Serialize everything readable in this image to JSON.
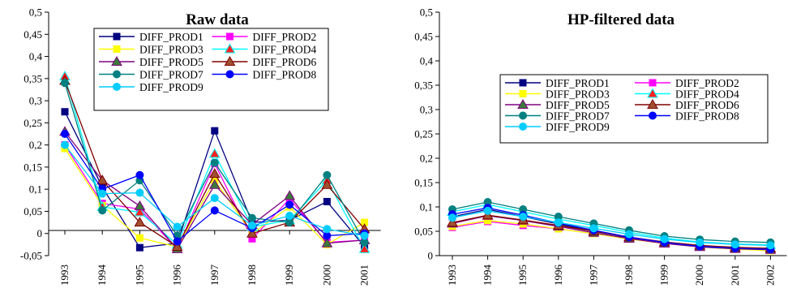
{
  "series_styles": [
    {
      "name": "DIFF_PROD1",
      "color": "#000080",
      "marker": "square"
    },
    {
      "name": "DIFF_PROD2",
      "color": "#ff00ff",
      "marker": "square"
    },
    {
      "name": "DIFF_PROD3",
      "color": "#ffff00",
      "marker": "square"
    },
    {
      "name": "DIFF_PROD4",
      "color": "#00ffff",
      "marker": "triangle",
      "marker_fill": "#ff2020"
    },
    {
      "name": "DIFF_PROD5",
      "color": "#800080",
      "marker": "triangle",
      "marker_fill": "#3a7a3a"
    },
    {
      "name": "DIFF_PROD6",
      "color": "#800000",
      "marker": "triangle",
      "marker_fill": "#a05030"
    },
    {
      "name": "DIFF_PROD7",
      "color": "#008080",
      "marker": "circle"
    },
    {
      "name": "DIFF_PROD8",
      "color": "#0000ff",
      "marker": "circle"
    },
    {
      "name": "DIFF_PROD9",
      "color": "#00ccff",
      "marker": "circle"
    }
  ],
  "chart_data": [
    {
      "type": "line",
      "title": "Raw data",
      "ylim": [
        -0.05,
        0.5
      ],
      "yticks": [
        "0,5",
        "0,45",
        "0,4",
        "0,35",
        "0,3",
        "0,25",
        "0,2",
        "0,15",
        "0,1",
        "0,05",
        "0",
        "-0,05"
      ],
      "categories": [
        "1993",
        "1994",
        "1995",
        "1996",
        "1997",
        "1998",
        "1999",
        "2000",
        "2001"
      ],
      "legend_position": "top-right",
      "series": [
        {
          "name": "DIFF_PROD1",
          "values": [
            0.275,
            0.105,
            -0.032,
            -0.022,
            0.232,
            0.025,
            0.03,
            0.072,
            -0.03
          ]
        },
        {
          "name": "DIFF_PROD2",
          "values": [
            0.2,
            0.068,
            0.055,
            -0.035,
            0.158,
            -0.012,
            0.078,
            -0.02,
            -0.015
          ]
        },
        {
          "name": "DIFF_PROD3",
          "values": [
            0.192,
            0.063,
            -0.01,
            -0.03,
            0.12,
            0.0,
            0.06,
            -0.025,
            0.025
          ]
        },
        {
          "name": "DIFF_PROD4",
          "values": [
            0.355,
            0.06,
            0.048,
            -0.025,
            0.18,
            0.015,
            0.03,
            0.12,
            -0.035
          ]
        },
        {
          "name": "DIFF_PROD5",
          "values": [
            0.23,
            0.12,
            0.062,
            -0.035,
            0.11,
            0.02,
            0.085,
            -0.022,
            -0.015
          ]
        },
        {
          "name": "DIFF_PROD6",
          "values": [
            0.345,
            0.12,
            0.025,
            -0.03,
            0.135,
            0.0,
            0.025,
            0.11,
            0.01
          ]
        },
        {
          "name": "DIFF_PROD7",
          "values": [
            0.34,
            0.052,
            0.12,
            -0.005,
            0.16,
            0.035,
            0.025,
            0.132,
            -0.02
          ]
        },
        {
          "name": "DIFF_PROD8",
          "values": [
            0.225,
            0.1,
            0.132,
            -0.018,
            0.052,
            0.012,
            0.065,
            -0.005,
            0.0
          ]
        },
        {
          "name": "DIFF_PROD9",
          "values": [
            0.2,
            0.09,
            0.092,
            0.015,
            0.08,
            0.018,
            0.04,
            0.01,
            -0.005
          ]
        }
      ]
    },
    {
      "type": "line",
      "title": "HP-filtered data",
      "ylim": [
        0,
        0.5
      ],
      "yticks": [
        "0,5",
        "0,45",
        "0,4",
        "0,35",
        "0,3",
        "0,25",
        "0,2",
        "0,15",
        "0,1",
        "0,05",
        "0"
      ],
      "categories": [
        "1993",
        "1994",
        "1995",
        "1996",
        "1997",
        "1998",
        "1999",
        "2000",
        "2001",
        "2002"
      ],
      "legend_position": "right",
      "series": [
        {
          "name": "DIFF_PROD1",
          "values": [
            0.08,
            0.095,
            0.08,
            0.065,
            0.05,
            0.037,
            0.027,
            0.02,
            0.016,
            0.014
          ]
        },
        {
          "name": "DIFF_PROD2",
          "values": [
            0.058,
            0.07,
            0.062,
            0.055,
            0.045,
            0.035,
            0.025,
            0.018,
            0.014,
            0.012
          ]
        },
        {
          "name": "DIFF_PROD3",
          "values": [
            0.06,
            0.072,
            0.065,
            0.055,
            0.045,
            0.034,
            0.025,
            0.018,
            0.013,
            0.01
          ]
        },
        {
          "name": "DIFF_PROD4",
          "values": [
            0.09,
            0.105,
            0.09,
            0.075,
            0.062,
            0.048,
            0.036,
            0.028,
            0.024,
            0.022
          ]
        },
        {
          "name": "DIFF_PROD5",
          "values": [
            0.066,
            0.082,
            0.072,
            0.06,
            0.047,
            0.035,
            0.025,
            0.018,
            0.014,
            0.012
          ]
        },
        {
          "name": "DIFF_PROD6",
          "values": [
            0.068,
            0.083,
            0.073,
            0.062,
            0.05,
            0.038,
            0.028,
            0.021,
            0.017,
            0.015
          ]
        },
        {
          "name": "DIFF_PROD7",
          "values": [
            0.095,
            0.11,
            0.095,
            0.08,
            0.066,
            0.052,
            0.04,
            0.033,
            0.029,
            0.027
          ]
        },
        {
          "name": "DIFF_PROD8",
          "values": [
            0.085,
            0.098,
            0.083,
            0.067,
            0.052,
            0.038,
            0.027,
            0.019,
            0.015,
            0.013
          ]
        },
        {
          "name": "DIFF_PROD9",
          "values": [
            0.078,
            0.092,
            0.08,
            0.068,
            0.056,
            0.044,
            0.034,
            0.027,
            0.023,
            0.021
          ]
        }
      ]
    }
  ]
}
